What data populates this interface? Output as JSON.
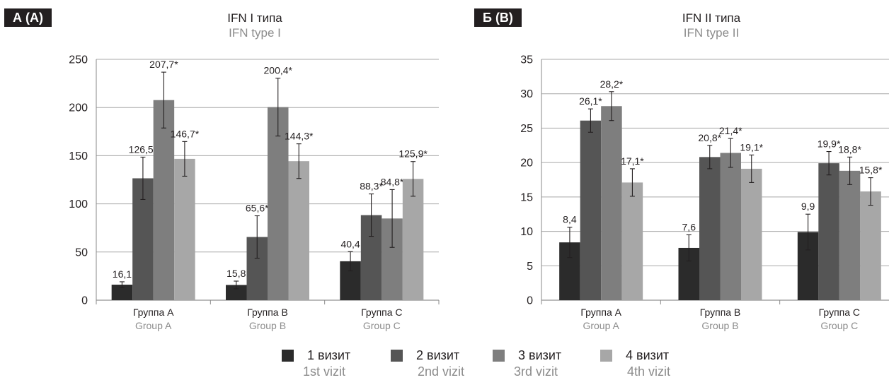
{
  "legend": [
    {
      "ru": "1 визит",
      "en": "1st vizit",
      "color": "#2b2b2b"
    },
    {
      "ru": "2 визит",
      "en": "2nd vizit",
      "color": "#555555"
    },
    {
      "ru": "3 визит",
      "en": "3rd vizit",
      "color": "#7e7e7e"
    },
    {
      "ru": "4 визит",
      "en": "4th vizit",
      "color": "#a7a7a7"
    }
  ],
  "chart_data": [
    {
      "type": "bar",
      "panel_label": "А (A)",
      "title": "IFN I типа",
      "subtitle": "IFN type I",
      "categories": [
        "Группа A",
        "Группа B",
        "Группа C"
      ],
      "categories_en": [
        "Group A",
        "Group B",
        "Group C"
      ],
      "ylim": [
        0,
        250
      ],
      "yticks": [
        0,
        50,
        100,
        150,
        200,
        250
      ],
      "grid": true,
      "series": [
        {
          "name": "1 визит",
          "values": [
            16.1,
            15.8,
            40.4
          ],
          "labels": [
            "16,1",
            "15,8",
            "40,4"
          ],
          "error": [
            3,
            4,
            10
          ]
        },
        {
          "name": "2 визит",
          "values": [
            126.5,
            65.6,
            88.3
          ],
          "labels": [
            "126,5*",
            "65,6*",
            "88,3*"
          ],
          "error": [
            22,
            22,
            22
          ]
        },
        {
          "name": "3 визит",
          "values": [
            207.7,
            200.4,
            84.8
          ],
          "labels": [
            "207,7*",
            "200,4*",
            "84,8*"
          ],
          "error": [
            29,
            30,
            30
          ]
        },
        {
          "name": "4 визит",
          "values": [
            146.7,
            144.3,
            125.9
          ],
          "labels": [
            "146,7*",
            "144,3*",
            "125,9*"
          ],
          "error": [
            18,
            18,
            18
          ]
        }
      ]
    },
    {
      "type": "bar",
      "panel_label": "Б (B)",
      "title": "IFN II типа",
      "subtitle": "IFN type II",
      "categories": [
        "Группа A",
        "Группа B",
        "Группа C"
      ],
      "categories_en": [
        "Group A",
        "Group B",
        "Group C"
      ],
      "ylim": [
        0,
        35
      ],
      "yticks": [
        0,
        5,
        10,
        15,
        20,
        25,
        30,
        35
      ],
      "grid": true,
      "series": [
        {
          "name": "1 визит",
          "values": [
            8.4,
            7.6,
            9.9
          ],
          "labels": [
            "8,4",
            "7,6",
            "9,9"
          ],
          "error": [
            2.2,
            1.9,
            2.6
          ]
        },
        {
          "name": "2 визит",
          "values": [
            26.1,
            20.8,
            19.9
          ],
          "labels": [
            "26,1*",
            "20,8*",
            "19,9*"
          ],
          "error": [
            1.7,
            1.7,
            1.7
          ]
        },
        {
          "name": "3 визит",
          "values": [
            28.2,
            21.4,
            18.8
          ],
          "labels": [
            "28,2*",
            "21,4*",
            "18,8*"
          ],
          "error": [
            2.1,
            2.1,
            2.0
          ]
        },
        {
          "name": "4 визит",
          "values": [
            17.1,
            19.1,
            15.8
          ],
          "labels": [
            "17,1*",
            "19,1*",
            "15,8*"
          ],
          "error": [
            2.0,
            2.0,
            2.0
          ]
        }
      ]
    }
  ]
}
